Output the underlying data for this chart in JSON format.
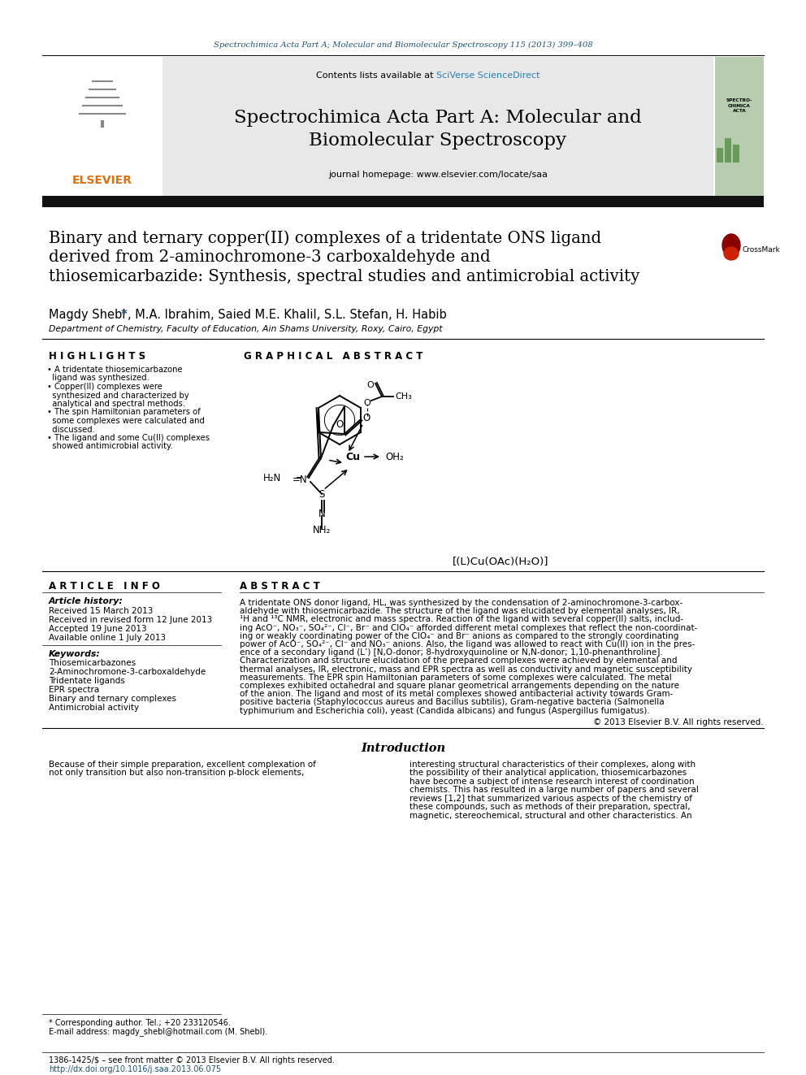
{
  "page_bg": "#ffffff",
  "top_citation": "Spectrochimica Acta Part A; Molecular and Biomolecular Spectroscopy 115 (2013) 399–408",
  "top_citation_color": "#1a5276",
  "journal_header_bg": "#e8e8e8",
  "journal_title_line1": "Spectrochimica Acta Part A: Molecular and",
  "journal_title_line2": "Biomolecular Spectroscopy",
  "journal_url_pre": "Contents lists available at ",
  "journal_url_link": "SciVerse ScienceDirect",
  "journal_homepage": "journal homepage: www.elsevier.com/locate/saa",
  "black_bar_color": "#111111",
  "paper_title_line1": "Binary and ternary copper(II) complexes of a tridentate ONS ligand",
  "paper_title_line2": "derived from 2-aminochromone-3 carboxaldehyde and",
  "paper_title_line3": "thiosemicarbazide: Synthesis, spectral studies and antimicrobial activity",
  "authors_pre": "Magdy Shebl",
  "authors_star": " *",
  "authors_post": ", M.A. Ibrahim, Saied M.E. Khalil, S.L. Stefan, H. Habib",
  "affiliation": "Department of Chemistry, Faculty of Education, Ain Shams University, Roxy, Cairo, Egypt",
  "highlights_title": "H I G H L I G H T S",
  "highlight_lines": [
    "• A tridentate thiosemicarbazone",
    "  ligand was synthesized.",
    "• Copper(II) complexes were",
    "  synthesized and characterized by",
    "  analytical and spectral methods.",
    "• The spin Hamiltonian parameters of",
    "  some complexes were calculated and",
    "  discussed.",
    "• The ligand and some Cu(II) complexes",
    "  showed antimicrobial activity."
  ],
  "graphical_abstract_title": "G R A P H I C A L   A B S T R A C T",
  "complex_label": "[(L)Cu(OAc)(H₂O)]",
  "article_info_title": "A R T I C L E   I N F O",
  "article_history_label": "Article history:",
  "article_dates": [
    "Received 15 March 2013",
    "Received in revised form 12 June 2013",
    "Accepted 19 June 2013",
    "Available online 1 July 2013"
  ],
  "keywords_label": "Keywords:",
  "keywords": [
    "Thiosemicarbazones",
    "2-Aminochromone-3-carboxaldehyde",
    "Tridentate ligands",
    "EPR spectra",
    "Binary and ternary complexes",
    "Antimicrobial activity"
  ],
  "abstract_title": "A B S T R A C T",
  "abstract_lines": [
    "A tridentate ONS donor ligand, HL, was synthesized by the condensation of 2-aminochromone-3-carbox-",
    "aldehyde with thiosemicarbazide. The structure of the ligand was elucidated by elemental analyses, IR,",
    "¹H and ¹³C NMR, electronic and mass spectra. Reaction of the ligand with several copper(II) salts, includ-",
    "ing AcO⁻, NO₃⁻, SO₄²⁻, Cl⁻, Br⁻ and ClO₄⁻ afforded different metal complexes that reflect the non-coordinat-",
    "ing or weakly coordinating power of the ClO₄⁻ and Br⁻ anions as compared to the strongly coordinating",
    "power of AcO⁻, SO₄²⁻, Cl⁻ and NO₃⁻ anions. Also, the ligand was allowed to react with Cu(II) ion in the pres-",
    "ence of a secondary ligand (L’) [N,O-donor; 8-hydroxyquinoline or N,N-donor; 1,10-phenanthroline].",
    "Characterization and structure elucidation of the prepared complexes were achieved by elemental and",
    "thermal analyses, IR, electronic, mass and EPR spectra as well as conductivity and magnetic susceptibility",
    "measurements. The EPR spin Hamiltonian parameters of some complexes were calculated. The metal",
    "complexes exhibited octahedral and square planar geometrical arrangements depending on the nature",
    "of the anion. The ligand and most of its metal complexes showed antibacterial activity towards Gram-",
    "positive bacteria (Staphylococcus aureus and Bacillus subtilis), Gram-negative bacteria (Salmonella",
    "typhimurium and Escherichia coli), yeast (Candida albicans) and fungus (Aspergillus fumigatus)."
  ],
  "copyright_text": "© 2013 Elsevier B.V. All rights reserved.",
  "intro_section_title": "Introduction",
  "intro_col1_lines": [
    "Because of their simple preparation, excellent complexation of",
    "not only transition but also non-transition p-block elements,"
  ],
  "intro_col2_lines": [
    "interesting structural characteristics of their complexes, along with",
    "the possibility of their analytical application, thiosemicarbazones",
    "have become a subject of intense research interest of coordination",
    "chemists. This has resulted in a large number of papers and several",
    "reviews [1,2] that summarized various aspects of the chemistry of",
    "these compounds, such as methods of their preparation, spectral,",
    "magnetic, stereochemical, structural and other characteristics. An"
  ],
  "footnote1": "* Corresponding author. Tel.; +20 233120546.",
  "footnote2": "E-mail address: magdy_shebl@hotmail.com (M. Shebl).",
  "footer1": "1386-1425/$ – see front matter © 2013 Elsevier B.V. All rights reserved.",
  "footer2": "http://dx.doi.org/10.1016/j.saa.2013.06.075",
  "elsevier_color": "#e07010",
  "link_color": "#1a5276",
  "sciverse_color": "#2980b9",
  "crossmark_red": "#c0392b",
  "header_gray": "#e8e8e8",
  "cover_green": "#b8ccb0"
}
